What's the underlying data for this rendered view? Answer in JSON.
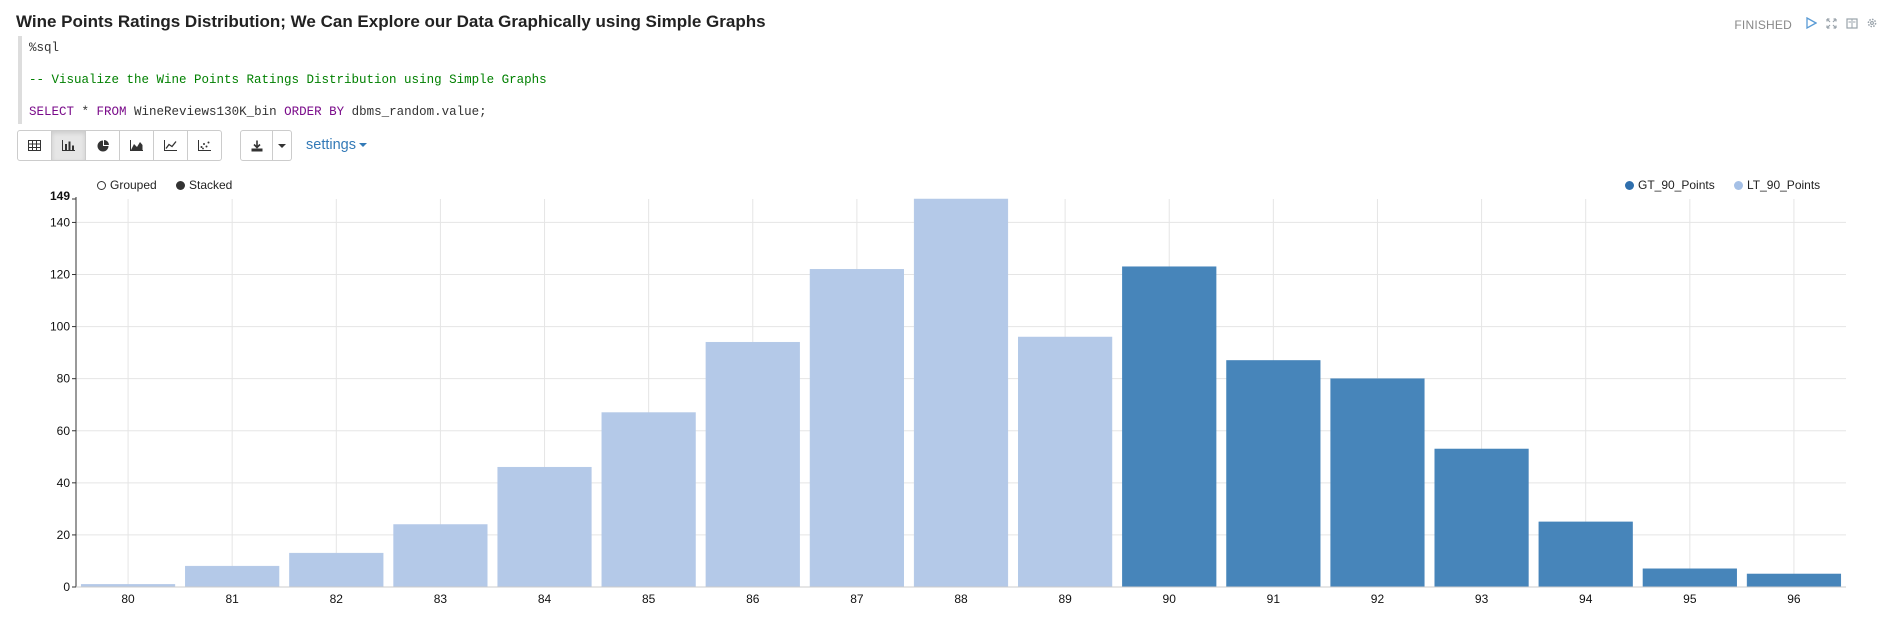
{
  "title": "Wine Points Ratings Distribution; We Can Explore our Data Graphically using Simple Graphs",
  "status": "FINISHED",
  "header_icons": [
    "run-icon",
    "expand-icon",
    "book-icon",
    "gear-icon"
  ],
  "code": {
    "line1": "%sql",
    "line2": "-- Visualize the Wine Points Ratings Distribution using Simple Graphs",
    "line3_kw1": "SELECT",
    "line3_mid1": " * ",
    "line3_kw2": "FROM",
    "line3_mid2": " WineReviews130K_bin ",
    "line3_kw3": "ORDER BY",
    "line3_end": " dbms_random.value;"
  },
  "toolbar": {
    "buttons": [
      "table-icon",
      "bar-chart-icon",
      "pie-chart-icon",
      "area-chart-icon",
      "line-chart-icon",
      "scatter-chart-icon"
    ],
    "active": "bar-chart-icon",
    "download_icon": "download-icon",
    "settings_label": "settings"
  },
  "chart_controls": {
    "grouped_label": "Grouped",
    "stacked_label": "Stacked"
  },
  "colors": {
    "gt": "#4785ba",
    "lt": "#b4c9e8"
  },
  "chart_data": {
    "type": "bar",
    "categories": [
      "80",
      "81",
      "82",
      "83",
      "84",
      "85",
      "86",
      "87",
      "88",
      "89",
      "90",
      "91",
      "92",
      "93",
      "94",
      "95",
      "96"
    ],
    "series": [
      {
        "name": "GT_90_Points",
        "values": [
          0,
          0,
          0,
          0,
          0,
          0,
          0,
          0,
          0,
          0,
          123,
          87,
          80,
          53,
          25,
          7,
          5
        ]
      },
      {
        "name": "LT_90_Points",
        "values": [
          1,
          8,
          13,
          24,
          46,
          67,
          94,
          122,
          149,
          96,
          0,
          0,
          0,
          0,
          0,
          0,
          0
        ]
      }
    ],
    "ylim": [
      0,
      149
    ],
    "yticks": [
      0,
      20,
      40,
      60,
      80,
      100,
      120,
      140,
      149
    ],
    "grid": true,
    "legend": "top-right"
  }
}
